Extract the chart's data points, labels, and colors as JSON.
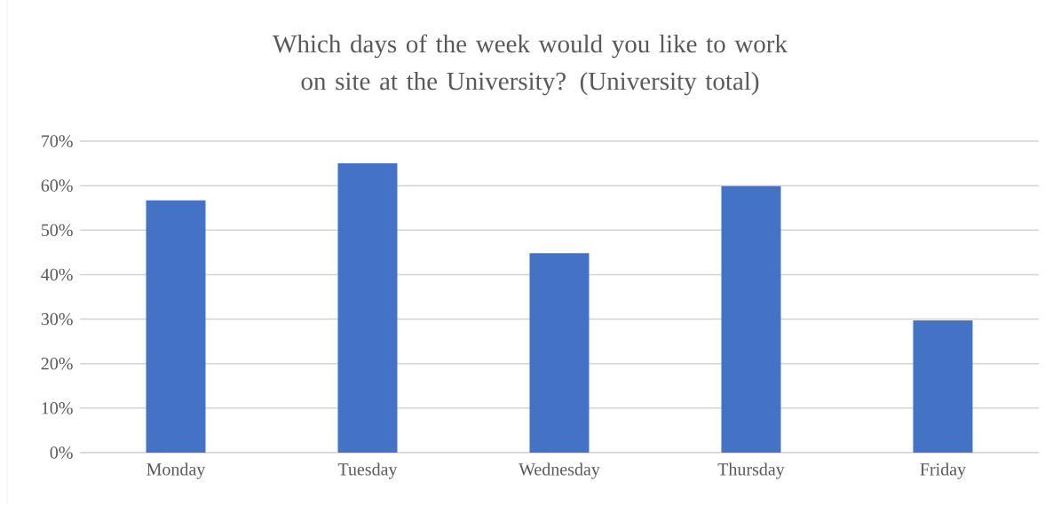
{
  "chart_data": {
    "type": "bar",
    "title": "Which days of the week would you like to work on site at the University? (University total)",
    "categories": [
      "Monday",
      "Tuesday",
      "Wednesday",
      "Thursday",
      "Friday"
    ],
    "values": [
      56.7,
      65.0,
      44.8,
      59.9,
      29.7
    ],
    "color": "#4472c4",
    "ylim": [
      0,
      70
    ],
    "yticks": [
      {
        "value": 0,
        "label": "0%"
      },
      {
        "value": 10,
        "label": "10%"
      },
      {
        "value": 20,
        "label": "20%"
      },
      {
        "value": 30,
        "label": "30%"
      },
      {
        "value": 40,
        "label": "40%"
      },
      {
        "value": 50,
        "label": "50%"
      },
      {
        "value": 60,
        "label": "60%"
      },
      {
        "value": 70,
        "label": "70%"
      }
    ],
    "grid": "y"
  }
}
